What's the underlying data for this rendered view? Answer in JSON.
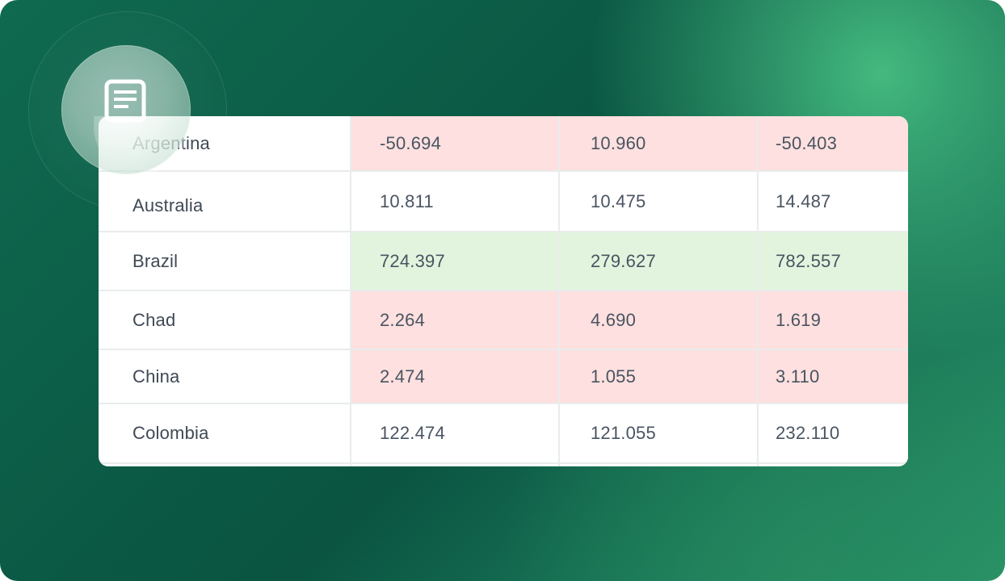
{
  "table": {
    "rows": [
      {
        "name": "Argentina",
        "v1": "-50.694",
        "v2": "10.960",
        "v3": "-50.403",
        "tone": "negative"
      },
      {
        "name": "Australia",
        "v1": "10.811",
        "v2": "10.475",
        "v3": "14.487",
        "tone": "none"
      },
      {
        "name": "Brazil",
        "v1": "724.397",
        "v2": "279.627",
        "v3": "782.557",
        "tone": "positive"
      },
      {
        "name": "Chad",
        "v1": "2.264",
        "v2": "4.690",
        "v3": "1.619",
        "tone": "negative"
      },
      {
        "name": "China",
        "v1": "2.474",
        "v2": "1.055",
        "v3": "3.110",
        "tone": "negative"
      },
      {
        "name": "Colombia",
        "v1": "122.474",
        "v2": "121.055",
        "v3": "232.110",
        "tone": "none"
      }
    ]
  },
  "colors": {
    "negative": "#fde0df",
    "positive": "#e2f4de",
    "brand_green": "#0f6a4f"
  },
  "icons": {
    "badge": "document-icon"
  }
}
